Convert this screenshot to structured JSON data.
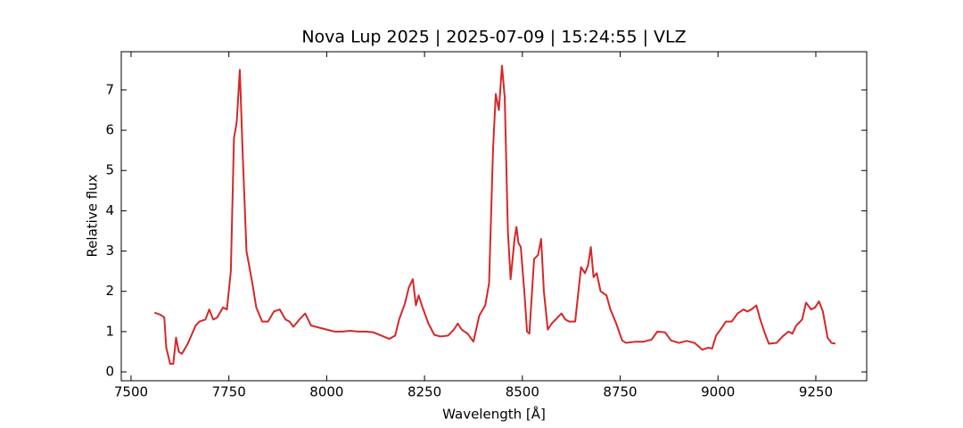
{
  "chart_data": {
    "type": "line",
    "title": "Nova Lup 2025 | 2025-07-09 | 15:24:55 | VLZ",
    "x_label": "Wavelength [Å]",
    "y_label": "Relative flux",
    "xlim": [
      7475,
      9380
    ],
    "ylim": [
      -0.22,
      7.95
    ],
    "xticks": [
      7500,
      7750,
      8000,
      8250,
      8500,
      8750,
      9000,
      9250
    ],
    "yticks": [
      0,
      1,
      2,
      3,
      4,
      5,
      6,
      7
    ],
    "x": [
      7560,
      7575,
      7585,
      7590,
      7600,
      7608,
      7615,
      7622,
      7630,
      7645,
      7665,
      7675,
      7690,
      7700,
      7710,
      7720,
      7735,
      7745,
      7755,
      7763,
      7770,
      7778,
      7785,
      7795,
      7810,
      7820,
      7835,
      7850,
      7865,
      7880,
      7895,
      7905,
      7915,
      7930,
      7945,
      7960,
      7980,
      8000,
      8020,
      8040,
      8060,
      8080,
      8100,
      8120,
      8140,
      8160,
      8175,
      8185,
      8200,
      8210,
      8220,
      8228,
      8235,
      8245,
      8260,
      8275,
      8290,
      8310,
      8325,
      8335,
      8345,
      8360,
      8375,
      8390,
      8405,
      8415,
      8425,
      8432,
      8440,
      8448,
      8455,
      8463,
      8470,
      8480,
      8485,
      8490,
      8496,
      8505,
      8512,
      8518,
      8530,
      8540,
      8548,
      8555,
      8565,
      8575,
      8585,
      8600,
      8610,
      8620,
      8635,
      8650,
      8660,
      8668,
      8675,
      8682,
      8690,
      8700,
      8715,
      8725,
      8740,
      8755,
      8765,
      8790,
      8810,
      8830,
      8845,
      8865,
      8880,
      8900,
      8920,
      8940,
      8960,
      8975,
      8985,
      8995,
      9010,
      9020,
      9035,
      9050,
      9065,
      9075,
      9085,
      9098,
      9108,
      9120,
      9130,
      9150,
      9165,
      9180,
      9190,
      9200,
      9215,
      9225,
      9238,
      9248,
      9258,
      9268,
      9280,
      9290,
      9300
    ],
    "series": [
      {
        "color": "#d62728",
        "values": [
          1.47,
          1.42,
          1.35,
          0.6,
          0.2,
          0.2,
          0.85,
          0.5,
          0.45,
          0.7,
          1.15,
          1.25,
          1.3,
          1.55,
          1.3,
          1.35,
          1.6,
          1.55,
          2.5,
          5.8,
          6.2,
          7.5,
          5.5,
          3.0,
          2.2,
          1.6,
          1.25,
          1.25,
          1.5,
          1.55,
          1.3,
          1.25,
          1.12,
          1.3,
          1.45,
          1.15,
          1.1,
          1.05,
          1.0,
          1.0,
          1.02,
          1.0,
          1.0,
          0.98,
          0.9,
          0.82,
          0.9,
          1.3,
          1.7,
          2.1,
          2.3,
          1.65,
          1.9,
          1.6,
          1.2,
          0.92,
          0.88,
          0.9,
          1.05,
          1.2,
          1.05,
          0.95,
          0.75,
          1.4,
          1.65,
          2.2,
          5.5,
          6.9,
          6.5,
          7.6,
          6.8,
          3.5,
          2.3,
          3.3,
          3.6,
          3.2,
          3.1,
          2.0,
          1.0,
          0.95,
          2.8,
          2.9,
          3.3,
          2.0,
          1.05,
          1.2,
          1.3,
          1.45,
          1.3,
          1.25,
          1.25,
          2.6,
          2.45,
          2.65,
          3.1,
          2.35,
          2.45,
          2.0,
          1.9,
          1.55,
          1.2,
          0.78,
          0.72,
          0.75,
          0.75,
          0.8,
          1.0,
          0.98,
          0.78,
          0.72,
          0.77,
          0.72,
          0.55,
          0.6,
          0.58,
          0.9,
          1.1,
          1.25,
          1.25,
          1.45,
          1.55,
          1.5,
          1.55,
          1.65,
          1.3,
          0.95,
          0.7,
          0.72,
          0.88,
          1.0,
          0.95,
          1.15,
          1.3,
          1.72,
          1.55,
          1.6,
          1.75,
          1.5,
          0.85,
          0.72,
          0.7
        ]
      }
    ]
  }
}
